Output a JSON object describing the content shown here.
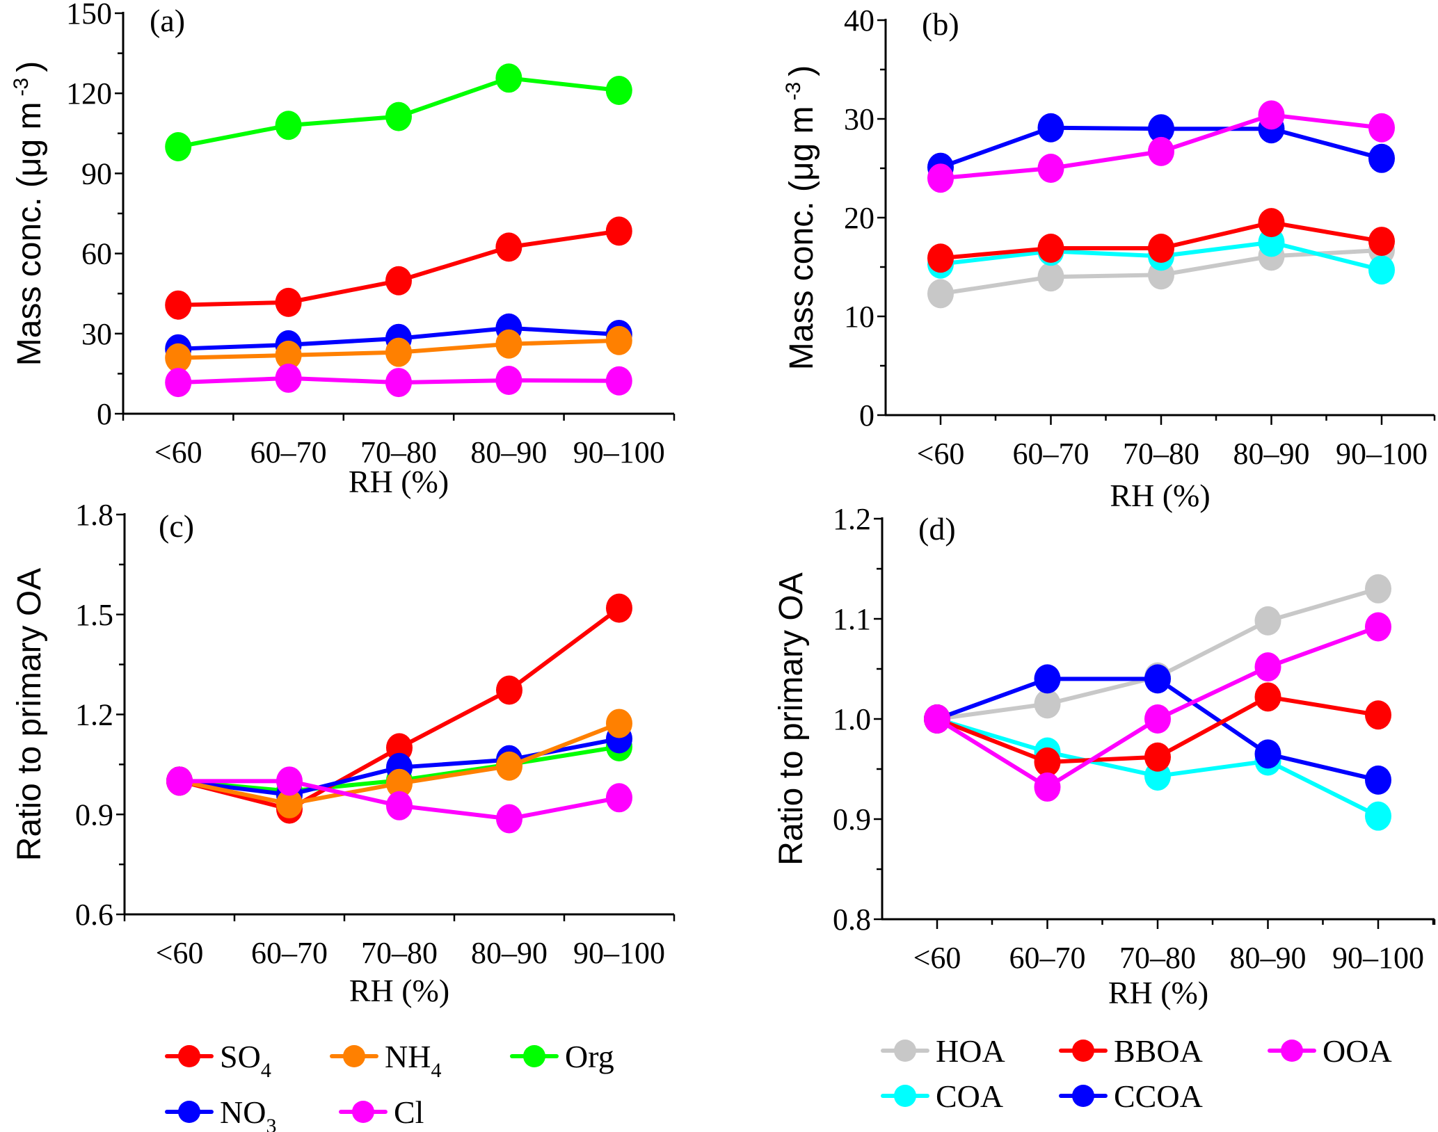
{
  "chart_data": [
    {
      "id": "a",
      "type": "line",
      "panel_label": "(a)",
      "xlabel": "RH (%)",
      "ylabel": "Mass conc. (μg m",
      "ylabel_sup": "-3",
      "ylabel_close": ")",
      "categories": [
        "<60",
        "60–70",
        "70–80",
        "80–90",
        "90–100"
      ],
      "ylim": [
        0,
        150
      ],
      "yticks": [
        0,
        30,
        60,
        90,
        120,
        150
      ],
      "yticks_labels": [
        "0",
        "30",
        "60",
        "90",
        "120",
        "150"
      ],
      "minor_per_major": 2,
      "xtick_style": "boundary",
      "grid": false,
      "series": [
        {
          "name": "SO4",
          "color": "#ff0000",
          "values": [
            40.7,
            41.7,
            49.8,
            62.4,
            68.4
          ]
        },
        {
          "name": "NO3",
          "color": "#0000ff",
          "values": [
            24.3,
            25.8,
            28.2,
            32.1,
            29.7
          ]
        },
        {
          "name": "NH4",
          "color": "#ff8000",
          "values": [
            20.9,
            21.9,
            23.0,
            26.1,
            27.4
          ]
        },
        {
          "name": "Org",
          "color": "#00ff00",
          "values": [
            100.0,
            108.0,
            111.3,
            125.7,
            121.1
          ]
        },
        {
          "name": "Cl",
          "color": "#ff00ff",
          "values": [
            11.7,
            13.3,
            11.7,
            12.5,
            12.3
          ]
        }
      ]
    },
    {
      "id": "b",
      "type": "line",
      "panel_label": "(b)",
      "xlabel": "RH (%)",
      "ylabel": "Mass conc. (μg m",
      "ylabel_sup": "-3",
      "ylabel_close": ")",
      "categories": [
        "<60",
        "60–70",
        "70–80",
        "80–90",
        "90–100"
      ],
      "ylim": [
        0,
        40
      ],
      "yticks": [
        0,
        10,
        20,
        30,
        40
      ],
      "yticks_labels": [
        "0",
        "10",
        "20",
        "30",
        "40"
      ],
      "minor_per_major": 2,
      "xtick_style": "center",
      "grid": false,
      "series": [
        {
          "name": "HOA",
          "color": "#c8c8c8",
          "values": [
            12.3,
            14.0,
            14.2,
            16.1,
            16.7
          ]
        },
        {
          "name": "COA",
          "color": "#00ffff",
          "values": [
            15.3,
            16.6,
            16.1,
            17.5,
            14.7
          ]
        },
        {
          "name": "BBOA",
          "color": "#ff0000",
          "values": [
            15.9,
            16.9,
            16.9,
            19.5,
            17.6
          ]
        },
        {
          "name": "CCOA",
          "color": "#0000ff",
          "values": [
            25.1,
            29.1,
            29.0,
            29.0,
            26.0
          ]
        },
        {
          "name": "OOA",
          "color": "#ff00ff",
          "values": [
            24.0,
            25.0,
            26.7,
            30.4,
            29.1
          ]
        }
      ]
    },
    {
      "id": "c",
      "type": "line",
      "panel_label": "(c)",
      "xlabel": "RH (%)",
      "ylabel": "Ratio to primary OA",
      "categories": [
        "<60",
        "60–70",
        "70–80",
        "80–90",
        "90–100"
      ],
      "ylim": [
        0.6,
        1.8
      ],
      "yticks": [
        0.6,
        0.9,
        1.2,
        1.5,
        1.8
      ],
      "yticks_labels": [
        "0.6",
        "0.9",
        "1.2",
        "1.5",
        "1.8"
      ],
      "minor_per_major": 2,
      "xtick_style": "boundary",
      "grid": false,
      "series": [
        {
          "name": "Org",
          "color": "#00ff00",
          "values": [
            1.0,
            0.97,
            1.002,
            1.05,
            1.103
          ]
        },
        {
          "name": "SO4",
          "color": "#ff0000",
          "values": [
            1.0,
            0.916,
            1.1,
            1.273,
            1.519
          ]
        },
        {
          "name": "NO3",
          "color": "#0000ff",
          "values": [
            1.0,
            0.959,
            1.041,
            1.064,
            1.127
          ]
        },
        {
          "name": "NH4",
          "color": "#ff8000",
          "values": [
            1.0,
            0.932,
            0.993,
            1.045,
            1.173
          ]
        },
        {
          "name": "Cl",
          "color": "#ff00ff",
          "values": [
            1.0,
            1.0,
            0.926,
            0.887,
            0.95
          ]
        }
      ]
    },
    {
      "id": "d",
      "type": "line",
      "panel_label": "(d)",
      "xlabel": "RH (%)",
      "ylabel": "Ratio to primary OA",
      "categories": [
        "<60",
        "60–70",
        "70–80",
        "80–90",
        "90–100"
      ],
      "ylim": [
        0.8,
        1.2
      ],
      "yticks": [
        0.8,
        0.9,
        1.0,
        1.1,
        1.2
      ],
      "yticks_labels": [
        "0.8",
        "0.9",
        "1.0",
        "1.1",
        "1.2"
      ],
      "minor_per_major": 2,
      "xtick_style": "center",
      "grid": false,
      "series": [
        {
          "name": "HOA",
          "color": "#c8c8c8",
          "values": [
            1.0,
            1.015,
            1.042,
            1.098,
            1.13
          ]
        },
        {
          "name": "COA",
          "color": "#00ffff",
          "values": [
            1.0,
            0.967,
            0.943,
            0.958,
            0.903
          ]
        },
        {
          "name": "CCOA",
          "color": "#0000ff",
          "values": [
            1.0,
            1.04,
            1.04,
            0.965,
            0.939
          ]
        },
        {
          "name": "BBOA",
          "color": "#ff0000",
          "values": [
            1.0,
            0.957,
            0.962,
            1.022,
            1.004
          ]
        },
        {
          "name": "OOA",
          "color": "#ff00ff",
          "values": [
            1.0,
            0.932,
            1.0,
            1.052,
            1.092
          ]
        }
      ]
    }
  ],
  "legends": [
    {
      "id": "inorganic",
      "placement": "bottom-left",
      "items": [
        {
          "main": "SO",
          "sub": "4",
          "color": "#ff0000"
        },
        {
          "main": "NH",
          "sub": "4",
          "color": "#ff8000"
        },
        {
          "main": "Org",
          "sub": "",
          "color": "#00ff00"
        },
        {
          "main": "NO",
          "sub": "3",
          "color": "#0000ff"
        },
        {
          "main": "Cl",
          "sub": "",
          "color": "#ff00ff"
        }
      ]
    },
    {
      "id": "organic-factors",
      "placement": "bottom-right",
      "items": [
        {
          "main": "HOA",
          "sub": "",
          "color": "#c8c8c8"
        },
        {
          "main": "BBOA",
          "sub": "",
          "color": "#ff0000"
        },
        {
          "main": "OOA",
          "sub": "",
          "color": "#ff00ff"
        },
        {
          "main": "COA",
          "sub": "",
          "color": "#00ffff"
        },
        {
          "main": "CCOA",
          "sub": "",
          "color": "#0000ff"
        }
      ]
    }
  ]
}
